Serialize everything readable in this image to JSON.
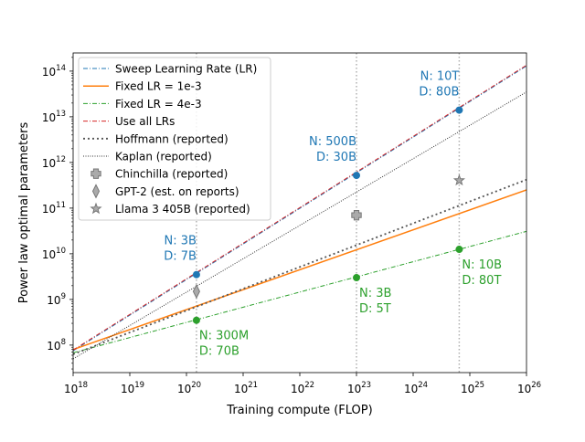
{
  "chart_data": {
    "type": "line",
    "xscale": "log",
    "yscale": "log",
    "xlim": [
      1e+18,
      1e+26
    ],
    "ylim": [
      25000000.0,
      250000000000000.0
    ],
    "xlabel": "Training compute (FLOP)",
    "ylabel": "Power law optimal parameters",
    "grid": false,
    "legend_position": "upper left",
    "xticks": [
      {
        "value": 1e+18,
        "base": "10",
        "exp": "18"
      },
      {
        "value": 1e+19,
        "base": "10",
        "exp": "19"
      },
      {
        "value": 1e+20,
        "base": "10",
        "exp": "20"
      },
      {
        "value": 1e+21,
        "base": "10",
        "exp": "21"
      },
      {
        "value": 1e+22,
        "base": "10",
        "exp": "22"
      },
      {
        "value": 1e+23,
        "base": "10",
        "exp": "23"
      },
      {
        "value": 1e+24,
        "base": "10",
        "exp": "24"
      },
      {
        "value": 1e+25,
        "base": "10",
        "exp": "25"
      },
      {
        "value": 1e+26,
        "base": "10",
        "exp": "26"
      }
    ],
    "yticks": [
      {
        "value": 100000000.0,
        "base": "10",
        "exp": "8"
      },
      {
        "value": 1000000000.0,
        "base": "10",
        "exp": "9"
      },
      {
        "value": 10000000000.0,
        "base": "10",
        "exp": "10"
      },
      {
        "value": 100000000000.0,
        "base": "10",
        "exp": "11"
      },
      {
        "value": 1000000000000.0,
        "base": "10",
        "exp": "12"
      },
      {
        "value": 10000000000000.0,
        "base": "10",
        "exp": "13"
      },
      {
        "value": 100000000000000.0,
        "base": "10",
        "exp": "14"
      }
    ],
    "vlines": [
      1.5e+20,
      1e+23,
      6.5e+24
    ],
    "lines": [
      {
        "name": "Sweep Learning Rate (LR)",
        "color": "#1f77b4",
        "dash": "5,2,1,2",
        "width": 1.0,
        "x": [
          1e+18,
          1e+26
        ],
        "y": [
          75000000.0,
          130000000000000.0
        ]
      },
      {
        "name": "Fixed LR = 1e-3",
        "color": "#ff7f0e",
        "dash": "",
        "width": 1.5,
        "x": [
          1e+18,
          1e+26
        ],
        "y": [
          80000000.0,
          250000000000.0
        ]
      },
      {
        "name": "Fixed LR = 4e-3",
        "color": "#2ca02c",
        "dash": "5,2,1,2",
        "width": 1.0,
        "x": [
          1e+18,
          1e+26
        ],
        "y": [
          68000000.0,
          31000000000.0
        ]
      },
      {
        "name": "Use all LRs",
        "color": "#d62728",
        "dash": "5,2,1,2",
        "width": 1.0,
        "x": [
          1e+18,
          1e+26
        ],
        "y": [
          78000000.0,
          135000000000000.0
        ]
      },
      {
        "name": "Hoffmann (reported)",
        "color": "#555555",
        "dash": "2,3",
        "width": 1.8,
        "x": [
          1e+18,
          1e+26
        ],
        "y": [
          63000000.0,
          420000000000.0
        ]
      },
      {
        "name": "Kaplan (reported)",
        "color": "#333333",
        "dash": "1,1.5",
        "width": 1.0,
        "x": [
          1e+18,
          1e+26
        ],
        "y": [
          50000000.0,
          35000000000000.0
        ]
      }
    ],
    "fit_points": [
      {
        "x": 1.5e+20,
        "y": 3500000000.0,
        "color": "#1f77b4"
      },
      {
        "x": 1e+23,
        "y": 520000000000.0,
        "color": "#1f77b4"
      },
      {
        "x": 6.5e+24,
        "y": 14000000000000.0,
        "color": "#1f77b4"
      },
      {
        "x": 1.5e+20,
        "y": 350000000.0,
        "color": "#2ca02c"
      },
      {
        "x": 1e+23,
        "y": 3000000000.0,
        "color": "#2ca02c"
      },
      {
        "x": 6.5e+24,
        "y": 12500000000.0,
        "color": "#2ca02c"
      }
    ],
    "reported_points": [
      {
        "name": "Chinchilla (reported)",
        "marker": "plus",
        "x": 1e+23,
        "y": 70000000000.0
      },
      {
        "name": "GPT-2 (est. on reports)",
        "marker": "thin_diamond",
        "x": 1.5e+20,
        "y": 1500000000.0
      },
      {
        "name": "Llama 3 405B (reported)",
        "marker": "star",
        "x": 6.5e+24,
        "y": 405000000000.0
      }
    ],
    "annotations": [
      {
        "line1": "N: 3B",
        "line2": "D: 7B",
        "color": "#1f77b4",
        "x": 1.5e+20,
        "y": 3500000000.0,
        "anchor": "end",
        "side": "above"
      },
      {
        "line1": "N: 500B",
        "line2": "D: 30B",
        "color": "#1f77b4",
        "x": 1e+23,
        "y": 520000000000.0,
        "anchor": "end",
        "side": "above"
      },
      {
        "line1": "N: 10T",
        "line2": "D: 80B",
        "color": "#1f77b4",
        "x": 6.5e+24,
        "y": 14000000000000.0,
        "anchor": "end",
        "side": "above"
      },
      {
        "line1": "N: 300M",
        "line2": "D: 70B",
        "color": "#2ca02c",
        "x": 1.5e+20,
        "y": 350000000.0,
        "anchor": "start",
        "side": "below"
      },
      {
        "line1": "N: 3B",
        "line2": "D: 5T",
        "color": "#2ca02c",
        "x": 1e+23,
        "y": 3000000000.0,
        "anchor": "start",
        "side": "below"
      },
      {
        "line1": "N: 10B",
        "line2": "D: 80T",
        "color": "#2ca02c",
        "x": 6.5e+24,
        "y": 12500000000.0,
        "anchor": "start",
        "side": "below"
      }
    ],
    "legend": [
      {
        "label": "Sweep Learning Rate (LR)",
        "kind": "line",
        "color": "#1f77b4",
        "dash": "5,2,1,2",
        "width": 1.0
      },
      {
        "label": "Fixed LR = 1e-3",
        "kind": "line",
        "color": "#ff7f0e",
        "dash": "",
        "width": 1.5
      },
      {
        "label": "Fixed LR = 4e-3",
        "kind": "line",
        "color": "#2ca02c",
        "dash": "5,2,1,2",
        "width": 1.0
      },
      {
        "label": "Use all LRs",
        "kind": "line",
        "color": "#d62728",
        "dash": "5,2,1,2",
        "width": 1.0
      },
      {
        "label": "Hoffmann (reported)",
        "kind": "line",
        "color": "#555555",
        "dash": "2,3",
        "width": 1.8
      },
      {
        "label": "Kaplan (reported)",
        "kind": "line",
        "color": "#333333",
        "dash": "1,1.5",
        "width": 1.0
      },
      {
        "label": "Chinchilla (reported)",
        "kind": "plus"
      },
      {
        "label": "GPT-2 (est. on reports)",
        "kind": "thin_diamond"
      },
      {
        "label": "Llama 3 405B (reported)",
        "kind": "star"
      }
    ]
  }
}
